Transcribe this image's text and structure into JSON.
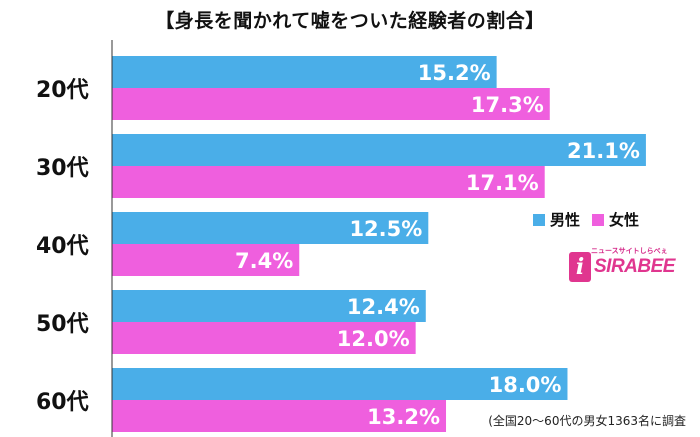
{
  "chart_data": {
    "type": "bar",
    "orientation": "horizontal",
    "title": "【身長を聞かれて嘘をついた経験者の割合】",
    "categories": [
      "20代",
      "30代",
      "40代",
      "50代",
      "60代"
    ],
    "series": [
      {
        "name": "男性",
        "color": "#4aaee8",
        "values": [
          15.2,
          21.1,
          12.5,
          12.4,
          18.0
        ],
        "labels": [
          "15.2%",
          "21.1%",
          "12.5%",
          "12.4%",
          "18.0%"
        ]
      },
      {
        "name": "女性",
        "color": "#ef5fde",
        "values": [
          17.3,
          17.1,
          7.4,
          12.0,
          13.2
        ],
        "labels": [
          "17.3%",
          "17.1%",
          "7.4%",
          "12.0%",
          "13.2%"
        ]
      }
    ],
    "xlim": [
      0,
      23
    ],
    "legend_position": "right",
    "grid": false,
    "footnote": "(全国20～60代の男女1363名に調査"
  },
  "logo": {
    "sub": "ニュースサイトしらべぇ",
    "main": "SIRABEE",
    "icon": "i"
  }
}
